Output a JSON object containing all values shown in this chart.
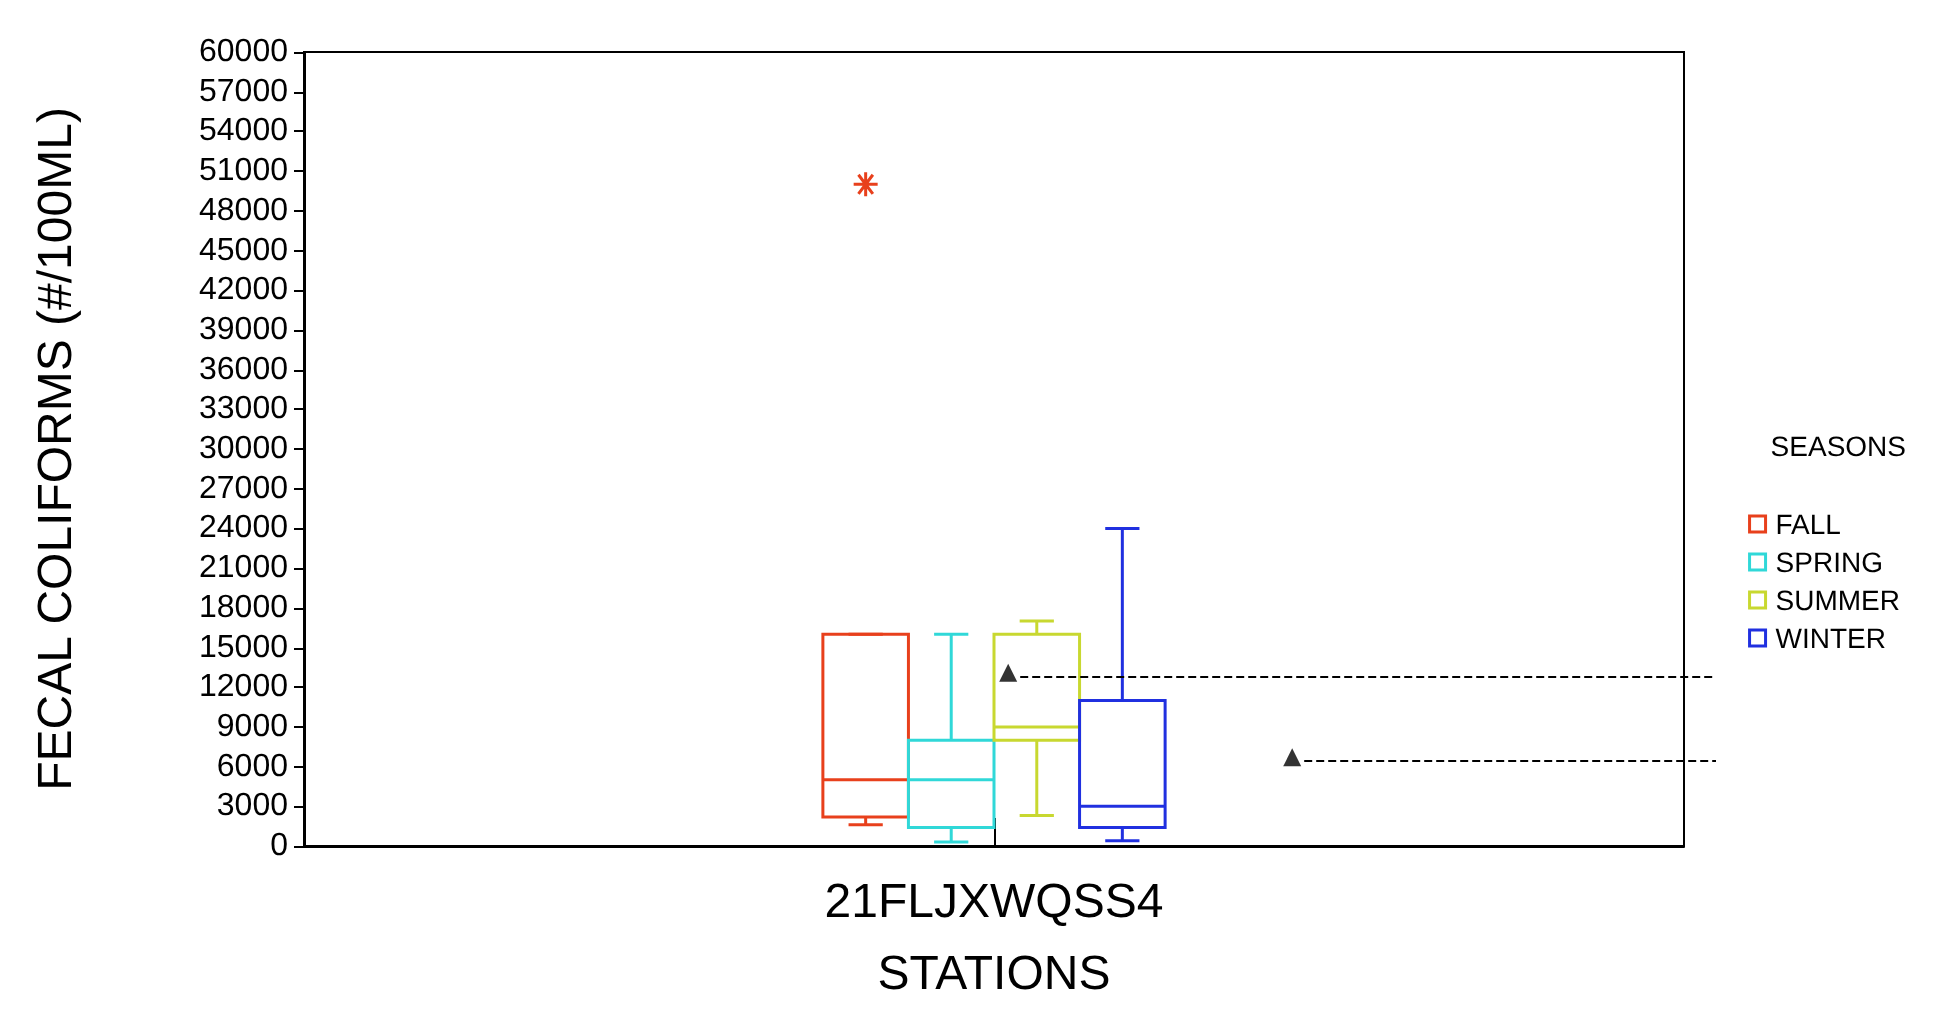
{
  "chart_data": {
    "type": "box",
    "xlabel": "STATIONS",
    "ylabel": "FECAL COLIFORMS (#/100ML)",
    "legend_title": "SEASONS",
    "legend": "right",
    "grid": false,
    "categories": [
      "21FLJXWQSS4"
    ],
    "ylim": [
      0,
      60000
    ],
    "yticks": [
      0,
      3000,
      6000,
      9000,
      12000,
      15000,
      18000,
      21000,
      24000,
      27000,
      30000,
      33000,
      36000,
      39000,
      42000,
      45000,
      48000,
      51000,
      54000,
      57000,
      60000
    ],
    "series": [
      {
        "name": "FALL",
        "color": "#e8401c",
        "boxes": [
          {
            "low": 1600,
            "q1": 2200,
            "median": 5000,
            "q3": 16000,
            "high": 16000,
            "outliers": [
              50000
            ]
          }
        ]
      },
      {
        "name": "SPRING",
        "color": "#30d8d8",
        "boxes": [
          {
            "low": 300,
            "q1": 1400,
            "median": 5000,
            "q3": 8000,
            "high": 16000
          }
        ]
      },
      {
        "name": "SUMMER",
        "color": "#c8d830",
        "boxes": [
          {
            "low": 2300,
            "q1": 8000,
            "median": 9000,
            "q3": 16000,
            "high": 17000
          }
        ]
      },
      {
        "name": "WINTER",
        "color": "#2030e0",
        "boxes": [
          {
            "low": 400,
            "q1": 1400,
            "median": 3000,
            "q3": 11000,
            "high": 24000
          }
        ]
      },
      {
        "type": "scatter",
        "marker": "triangle",
        "color": "#000000",
        "x": [
          "21FLJXWQSS4",
          "21FLJXWQSS4"
        ],
        "values": [
          13100,
          6700
        ]
      }
    ],
    "ref_lines": [
      {
        "axis": "y",
        "value": 12800,
        "line_style": "dashed",
        "color": "#000000"
      },
      {
        "axis": "y",
        "value": 6400,
        "line_style": "dashed",
        "color": "#000000"
      }
    ]
  }
}
